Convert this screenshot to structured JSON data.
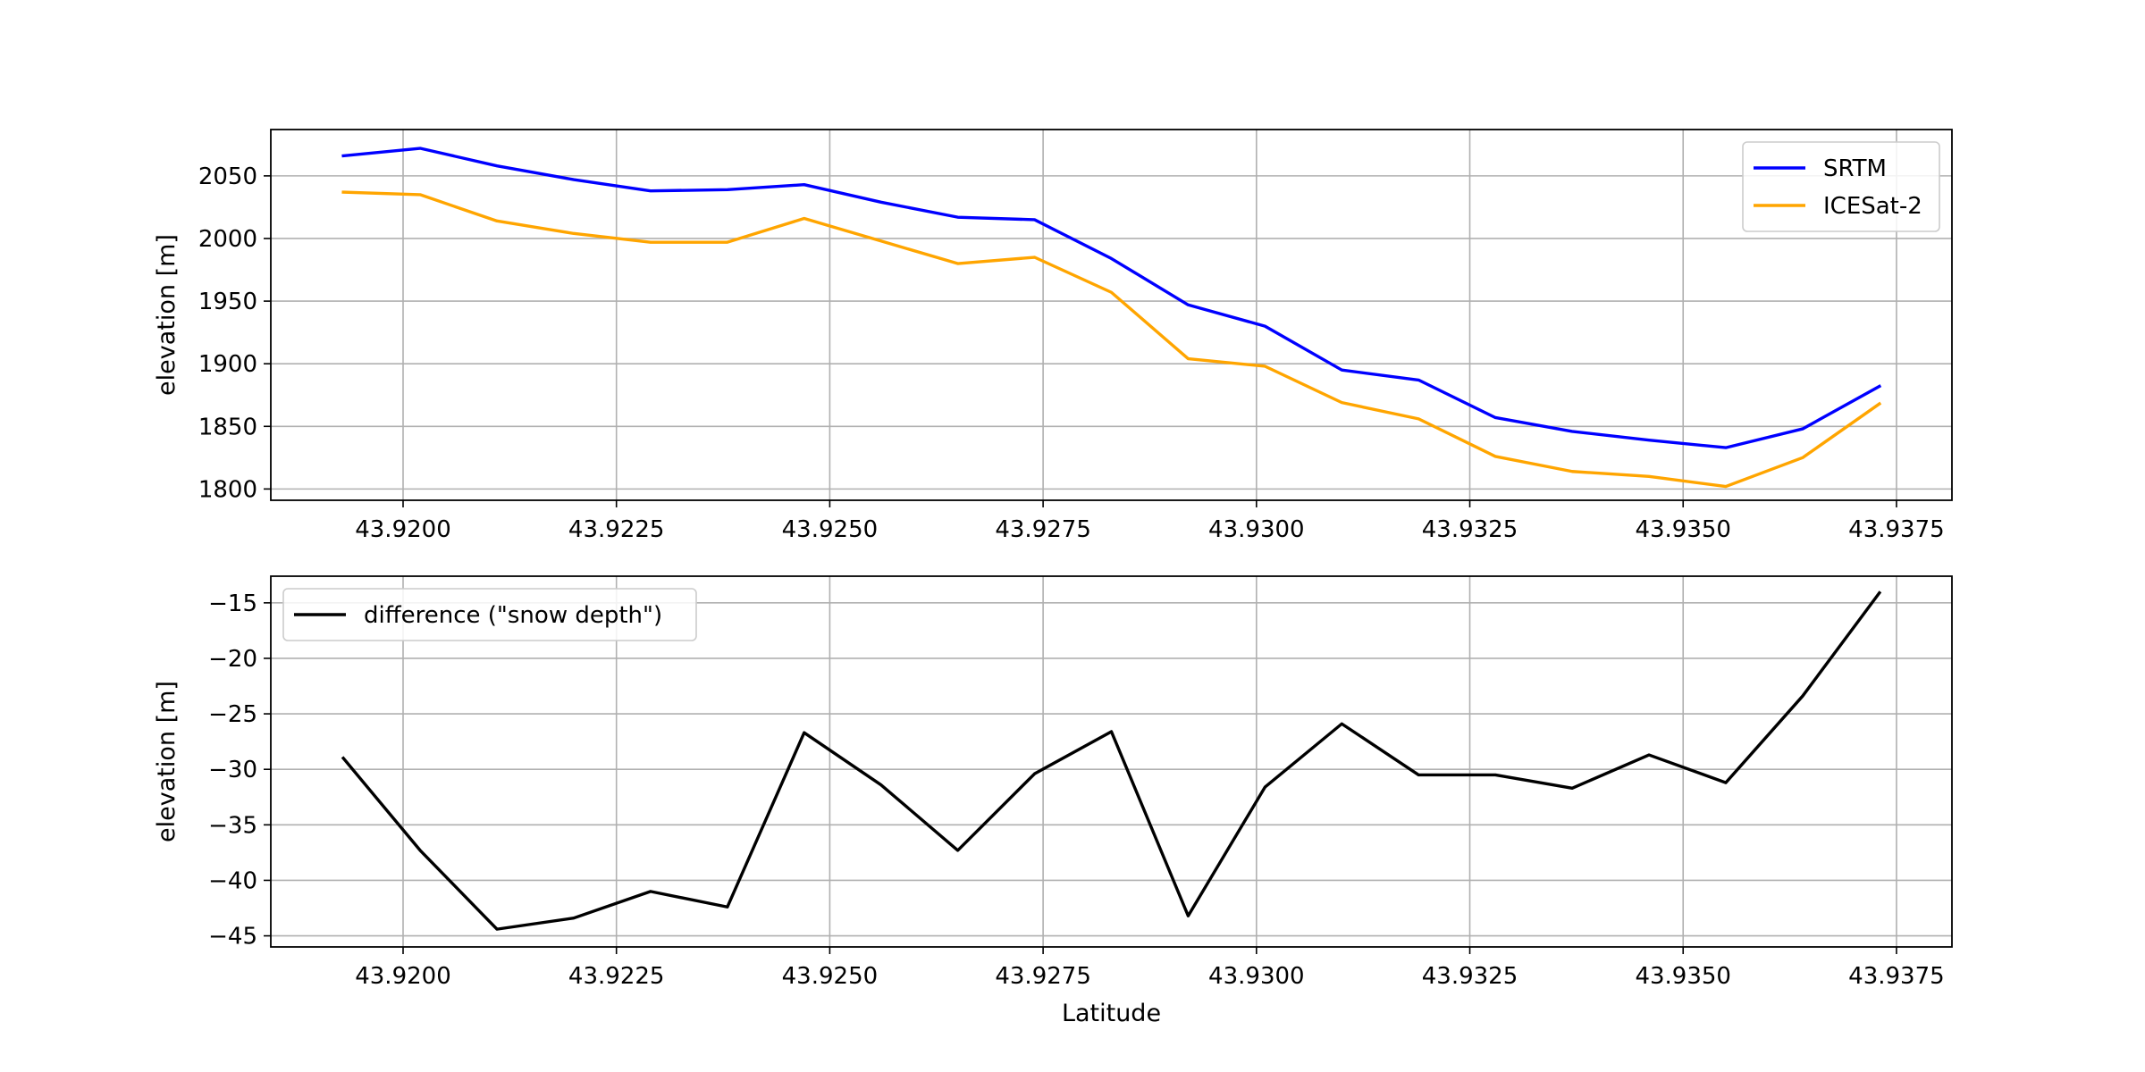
{
  "chart_data": [
    {
      "type": "line",
      "xlabel": "",
      "ylabel": "elevation [m]",
      "xlim": [
        43.91845,
        43.93815
      ],
      "ylim": [
        1791,
        2087
      ],
      "grid": true,
      "legend_position": "upper right",
      "x_ticks": [
        "43.9200",
        "43.9225",
        "43.9250",
        "43.9275",
        "43.9300",
        "43.9325",
        "43.9350",
        "43.9375"
      ],
      "y_ticks": [
        "1800",
        "1850",
        "1900",
        "1950",
        "2000",
        "2050"
      ],
      "x": [
        43.9193,
        43.9202,
        43.9211,
        43.922,
        43.9229,
        43.9238,
        43.9247,
        43.9256,
        43.9265,
        43.9274,
        43.9283,
        43.9292,
        43.9301,
        43.931,
        43.9319,
        43.9328,
        43.9337,
        43.9346,
        43.9355,
        43.9364,
        43.9373
      ],
      "series": [
        {
          "name": "SRTM",
          "color": "#0000ff",
          "values": [
            2066,
            2072,
            2058,
            2047,
            2038,
            2039,
            2043,
            2029,
            2017,
            2015,
            1984,
            1947,
            1930,
            1895,
            1887,
            1857,
            1846,
            1839,
            1833,
            1848,
            1882
          ]
        },
        {
          "name": "ICESat-2",
          "color": "#ffa500",
          "values": [
            2037,
            2035,
            2014,
            2004,
            1997,
            1997,
            2016,
            1998,
            1980,
            1985,
            1957,
            1904,
            1898,
            1869,
            1856,
            1826,
            1814,
            1810,
            1802,
            1825,
            1868
          ]
        }
      ]
    },
    {
      "type": "line",
      "xlabel": "Latitude",
      "ylabel": "elevation [m]",
      "xlim": [
        43.91845,
        43.93815
      ],
      "ylim": [
        -46,
        -12.6
      ],
      "grid": true,
      "legend_position": "upper left",
      "x_ticks": [
        "43.9200",
        "43.9225",
        "43.9250",
        "43.9275",
        "43.9300",
        "43.9325",
        "43.9350",
        "43.9375"
      ],
      "y_ticks": [
        "−45",
        "−40",
        "−35",
        "−30",
        "−25",
        "−20",
        "−15"
      ],
      "x": [
        43.9193,
        43.9202,
        43.9211,
        43.922,
        43.9229,
        43.9238,
        43.9247,
        43.9256,
        43.9265,
        43.9274,
        43.9283,
        43.9292,
        43.9301,
        43.931,
        43.9319,
        43.9328,
        43.9337,
        43.9346,
        43.9355,
        43.9364,
        43.9373
      ],
      "series": [
        {
          "name": "difference (\"snow depth\")",
          "color": "#000000",
          "values": [
            -29.0,
            -37.3,
            -44.4,
            -43.4,
            -41.0,
            -42.4,
            -26.7,
            -31.4,
            -37.3,
            -30.4,
            -26.6,
            -43.2,
            -31.6,
            -25.9,
            -30.5,
            -30.5,
            -31.7,
            -28.7,
            -31.2,
            -23.4,
            -14.1
          ]
        }
      ]
    }
  ]
}
